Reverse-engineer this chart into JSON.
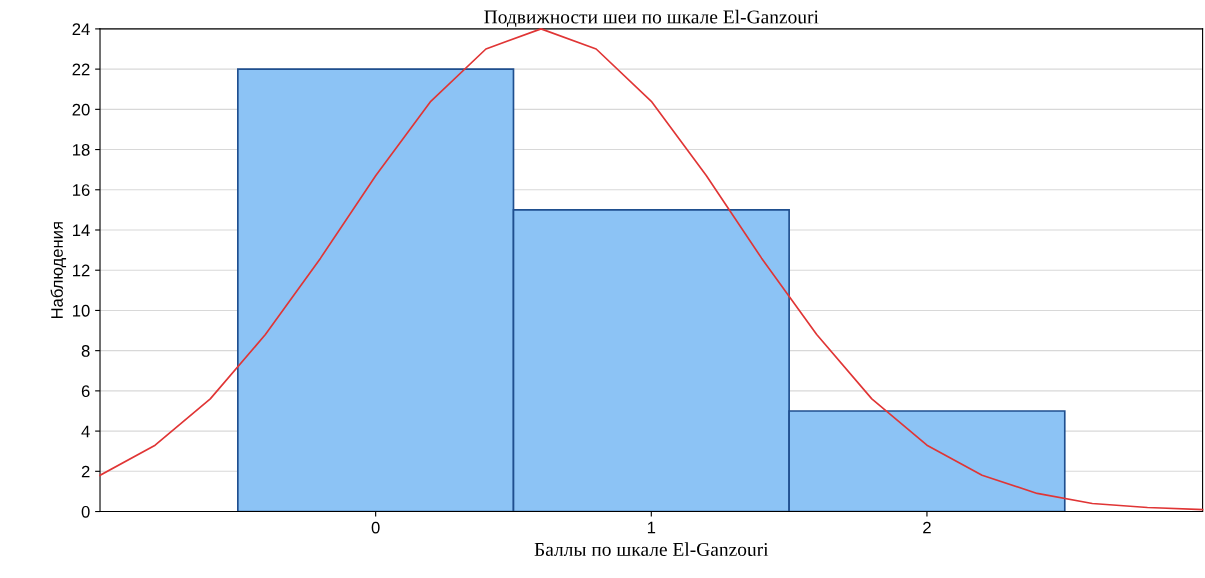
{
  "chart_data": {
    "type": "histogram",
    "title": "Подвижности шеи по шкале El-Ganzouri",
    "xlabel": "Баллы по шкале El-Ganzouri",
    "ylabel": "Наблюдения",
    "bins": [
      -0.5,
      0.5,
      1.5,
      2.5
    ],
    "values": [
      22,
      15,
      5
    ],
    "color": "#8cc3f5",
    "series": [
      {
        "type": "line",
        "color": "#e03535",
        "x": [
          -1,
          -0.8,
          -0.6,
          -0.4,
          -0.2,
          0,
          0.2,
          0.4,
          0.6,
          0.8,
          1.0,
          1.2,
          1.4,
          1.6,
          1.8,
          2.0,
          2.2,
          2.4,
          2.6,
          2.8,
          3.0
        ],
        "values": [
          1.8,
          3.3,
          5.6,
          8.8,
          12.6,
          16.7,
          20.4,
          23,
          24,
          23,
          20.4,
          16.7,
          12.6,
          8.8,
          5.6,
          3.3,
          1.8,
          0.9,
          0.4,
          0.2,
          0.1
        ]
      }
    ],
    "xlim": [
      -1,
      3
    ],
    "xticks": [
      0,
      1,
      2
    ],
    "ylim": [
      0,
      24
    ],
    "yticks": [
      0,
      2,
      4,
      6,
      8,
      10,
      12,
      14,
      16,
      18,
      20,
      22,
      24
    ],
    "grid": "y",
    "legend": false,
    "marker": "none",
    "line_style": "solid"
  }
}
